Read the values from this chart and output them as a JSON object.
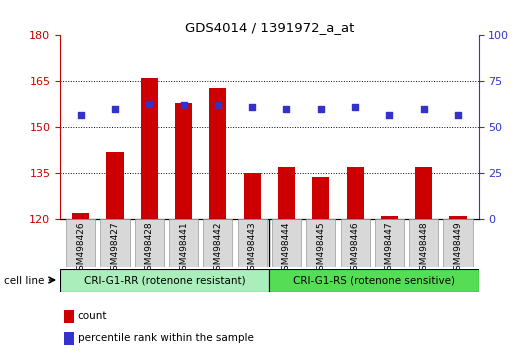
{
  "title": "GDS4014 / 1391972_a_at",
  "samples": [
    "GSM498426",
    "GSM498427",
    "GSM498428",
    "GSM498441",
    "GSM498442",
    "GSM498443",
    "GSM498444",
    "GSM498445",
    "GSM498446",
    "GSM498447",
    "GSM498448",
    "GSM498449"
  ],
  "counts": [
    122,
    142,
    166,
    158,
    163,
    135,
    137,
    134,
    137,
    121,
    137,
    121
  ],
  "percentile_ranks": [
    57,
    60,
    63,
    62,
    62,
    61,
    60,
    60,
    61,
    57,
    60,
    57
  ],
  "group1_label": "CRI-G1-RR (rotenone resistant)",
  "group2_label": "CRI-G1-RS (rotenone sensitive)",
  "group1_count": 6,
  "group2_count": 6,
  "cell_line_label": "cell line",
  "bar_color": "#cc0000",
  "dot_color": "#3333cc",
  "group1_bg": "#aaeebb",
  "group2_bg": "#55dd55",
  "tick_bg": "#d8d8d8",
  "ylim_left": [
    120,
    180
  ],
  "ylim_right": [
    0,
    100
  ],
  "yticks_left": [
    120,
    135,
    150,
    165,
    180
  ],
  "yticks_right": [
    0,
    25,
    50,
    75,
    100
  ],
  "grid_lines": [
    135,
    150,
    165
  ],
  "legend_count": "count",
  "legend_pct": "percentile rank within the sample",
  "bar_width": 0.5,
  "figsize": [
    5.23,
    3.54
  ],
  "dpi": 100
}
